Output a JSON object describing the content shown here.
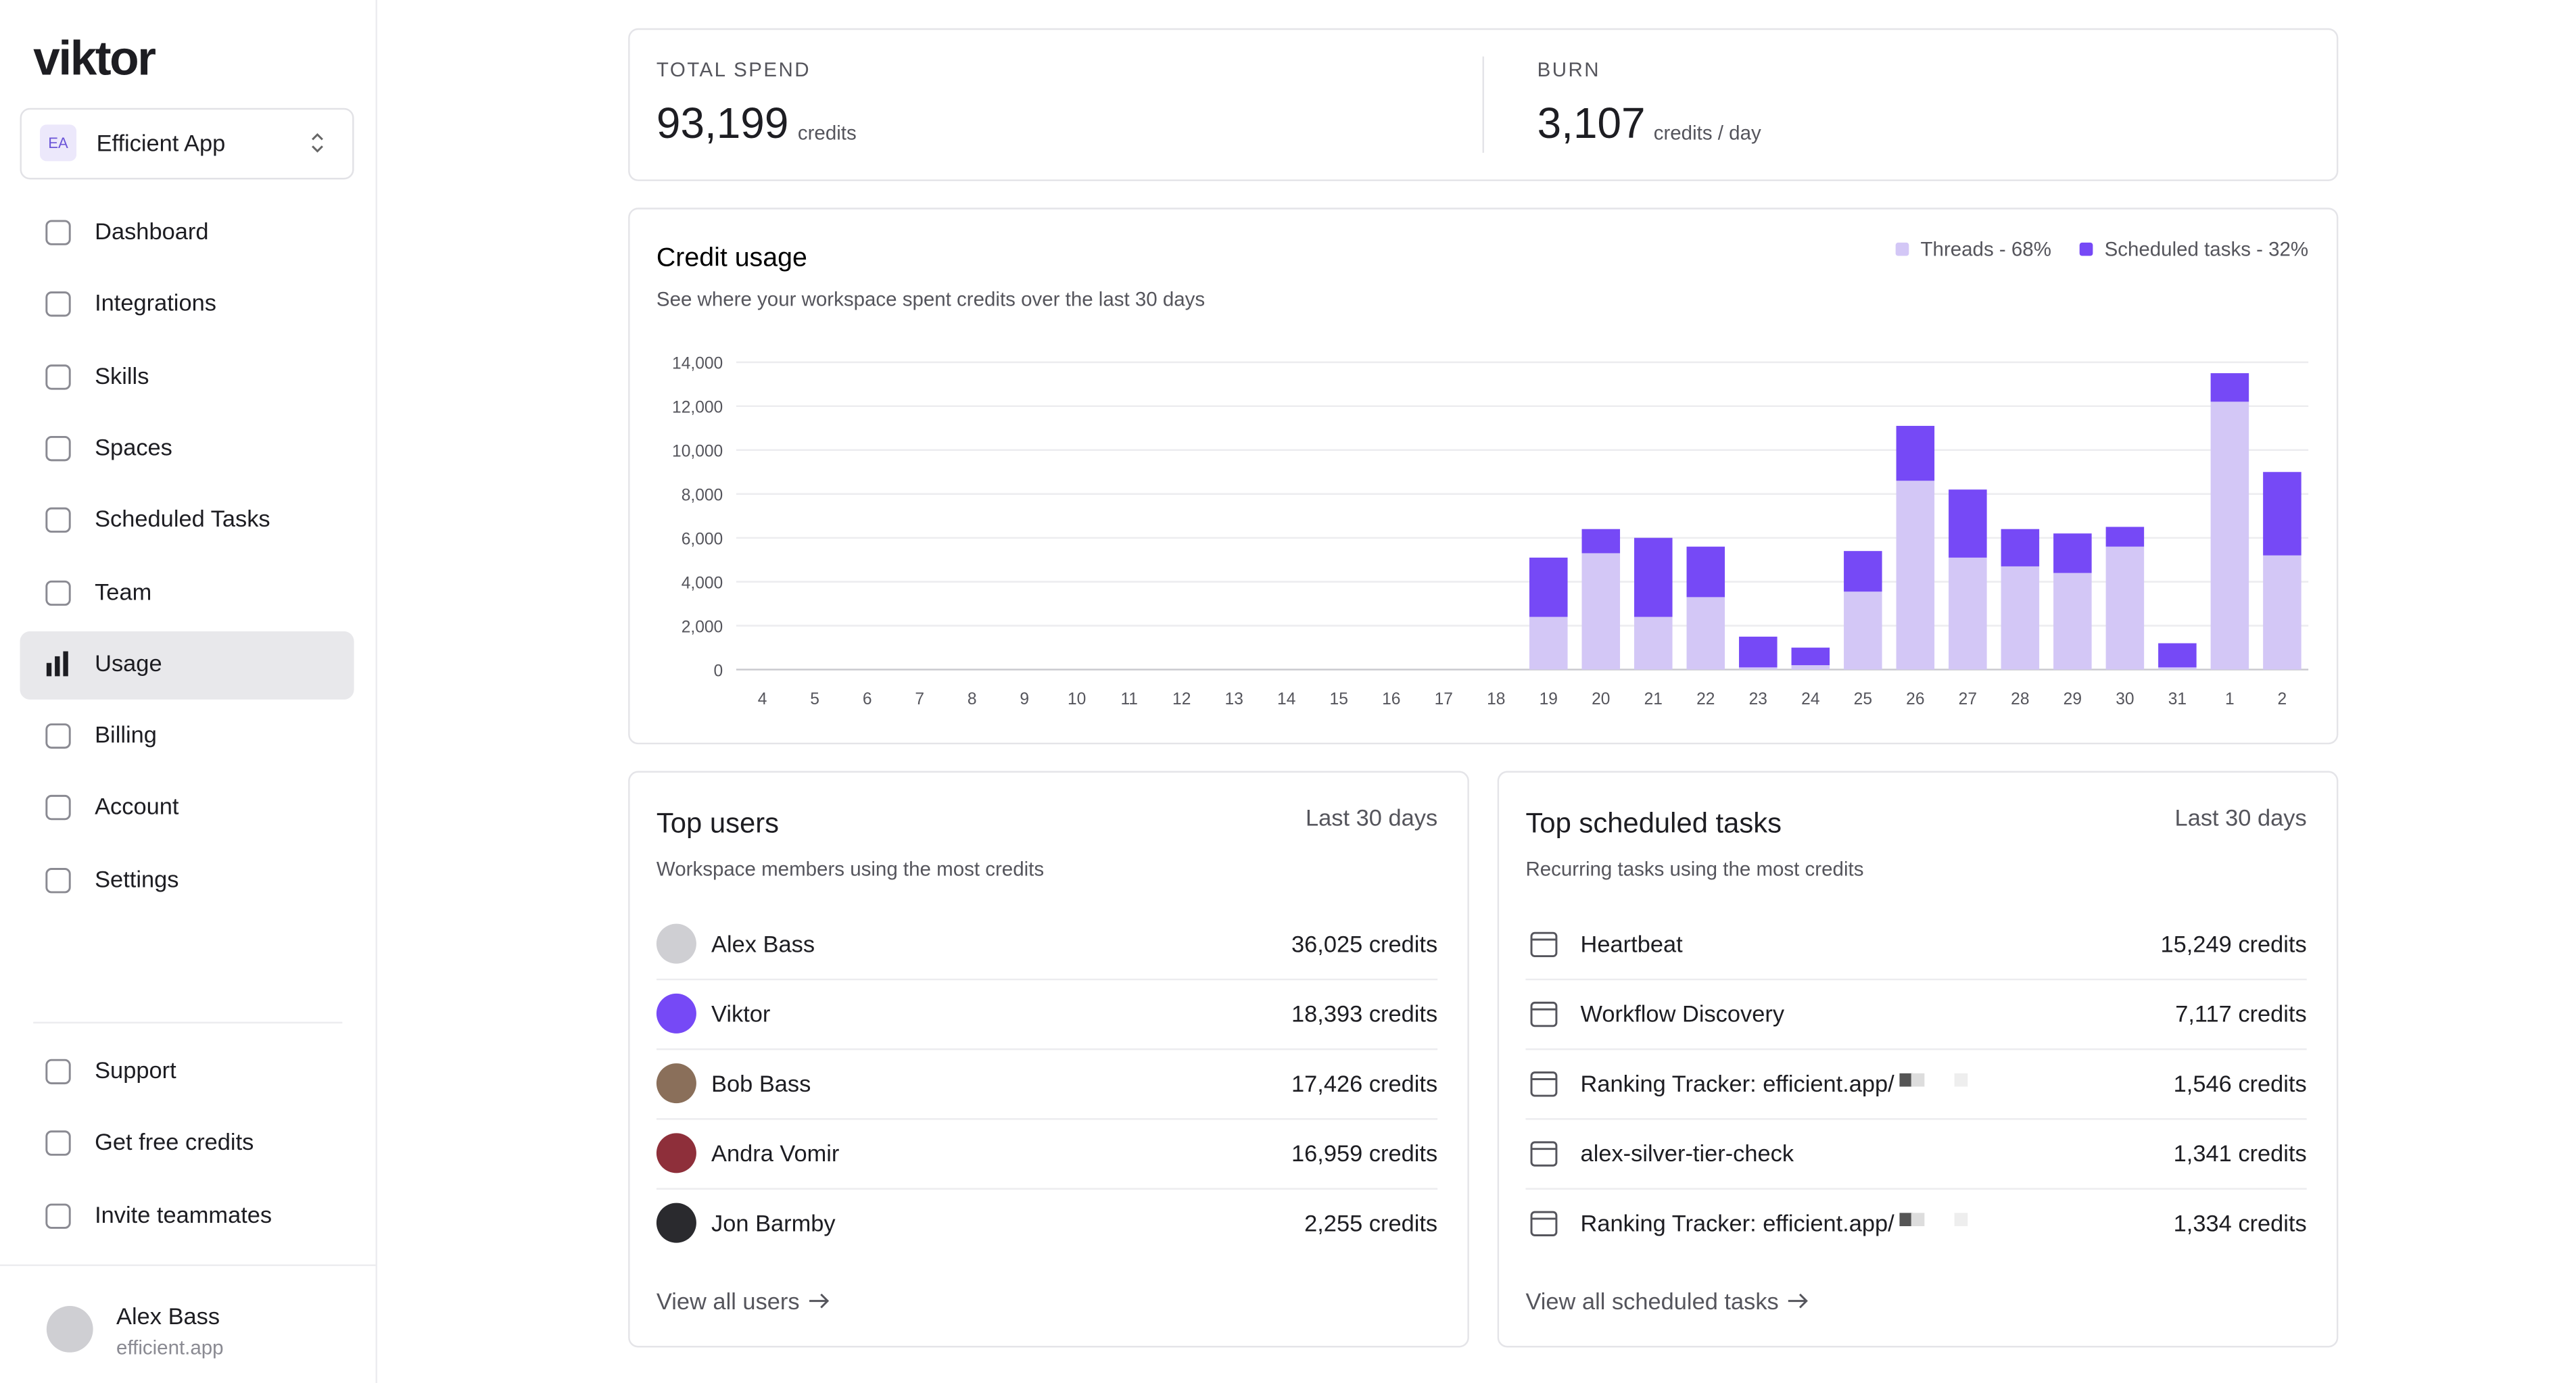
{
  "sidebar": {
    "logo": "viktor",
    "workspace": {
      "badge": "EA",
      "name": "Efficient App"
    },
    "nav": [
      "Dashboard",
      "Integrations",
      "Skills",
      "Spaces",
      "Scheduled Tasks",
      "Team",
      "Usage",
      "Billing",
      "Account",
      "Settings"
    ],
    "active": "Usage",
    "footer_nav": [
      "Support",
      "Get free credits",
      "Invite teammates"
    ],
    "user": {
      "name": "Alex Bass",
      "email": "efficient.app"
    }
  },
  "stats": [
    {
      "label": "TOTAL SPEND",
      "value": "93,199",
      "unit": "credits"
    },
    {
      "label": "BURN",
      "value": "3,107",
      "unit": "credits / day"
    }
  ],
  "chart_data": {
    "type": "stacked_bar",
    "title": "Credit usage",
    "subtitle": "See where your workspace spent credits over the last 30 days",
    "categories": [
      "4",
      "5",
      "6",
      "7",
      "8",
      "9",
      "10",
      "11",
      "12",
      "13",
      "14",
      "15",
      "16",
      "17",
      "18",
      "19",
      "20",
      "21",
      "22",
      "23",
      "24",
      "25",
      "26",
      "27",
      "28",
      "29",
      "30",
      "31",
      "1",
      "2"
    ],
    "series": [
      {
        "name": "Threads - 68%",
        "color": "#d3c7f6",
        "values": [
          0,
          0,
          0,
          0,
          0,
          0,
          0,
          0,
          0,
          0,
          0,
          0,
          0,
          0,
          0,
          2400,
          5300,
          2400,
          3300,
          100,
          200,
          3550,
          8600,
          5100,
          4700,
          4400,
          5600,
          100,
          12200,
          5200
        ]
      },
      {
        "name": "Scheduled tasks - 32%",
        "color": "#7649f6",
        "values": [
          0,
          0,
          0,
          0,
          0,
          0,
          0,
          0,
          0,
          0,
          0,
          0,
          0,
          0,
          0,
          2700,
          1100,
          3600,
          2300,
          1400,
          800,
          1850,
          2500,
          3100,
          1700,
          1800,
          900,
          1100,
          1300,
          3800
        ]
      }
    ],
    "ylim": [
      0,
      14000
    ],
    "yticks": [
      0,
      {
        "value": 2000,
        "label": "2,000"
      },
      {
        "value": 4000,
        "label": "4,000"
      },
      {
        "value": 6000,
        "label": "6,000"
      },
      {
        "value": 8000,
        "label": "8,000"
      },
      {
        "value": 10000,
        "label": "10,000"
      },
      {
        "value": 12000,
        "label": "12,000"
      },
      {
        "value": 14000,
        "label": "14,000"
      }
    ],
    "grid": true,
    "legend": "top-right"
  },
  "top_users": {
    "title": "Top users",
    "period": "Last 30 days",
    "subtitle": "Workspace members using the most credits",
    "rows": [
      [
        "Alex Bass",
        "36,025 credits"
      ],
      [
        "Viktor",
        "18,393 credits"
      ],
      [
        "Bob Bass",
        "17,426 credits"
      ],
      [
        "Andra Vomir",
        "16,959 credits"
      ],
      [
        "Jon Barmby",
        "2,255 credits"
      ]
    ],
    "link": "View all users"
  },
  "top_tasks": {
    "title": "Top scheduled tasks",
    "period": "Last 30 days",
    "subtitle": "Recurring tasks using the most credits",
    "rows": [
      [
        "Heartbeat",
        "15,249 credits"
      ],
      [
        "Workflow Discovery",
        "7,117 credits"
      ],
      [
        "Ranking Tracker: efficient.app/",
        "1,546 credits"
      ],
      [
        "alex-silver-tier-check",
        "1,341 credits"
      ],
      [
        "Ranking Tracker: efficient.app/",
        "1,334 credits"
      ]
    ],
    "link": "View all scheduled tasks"
  }
}
